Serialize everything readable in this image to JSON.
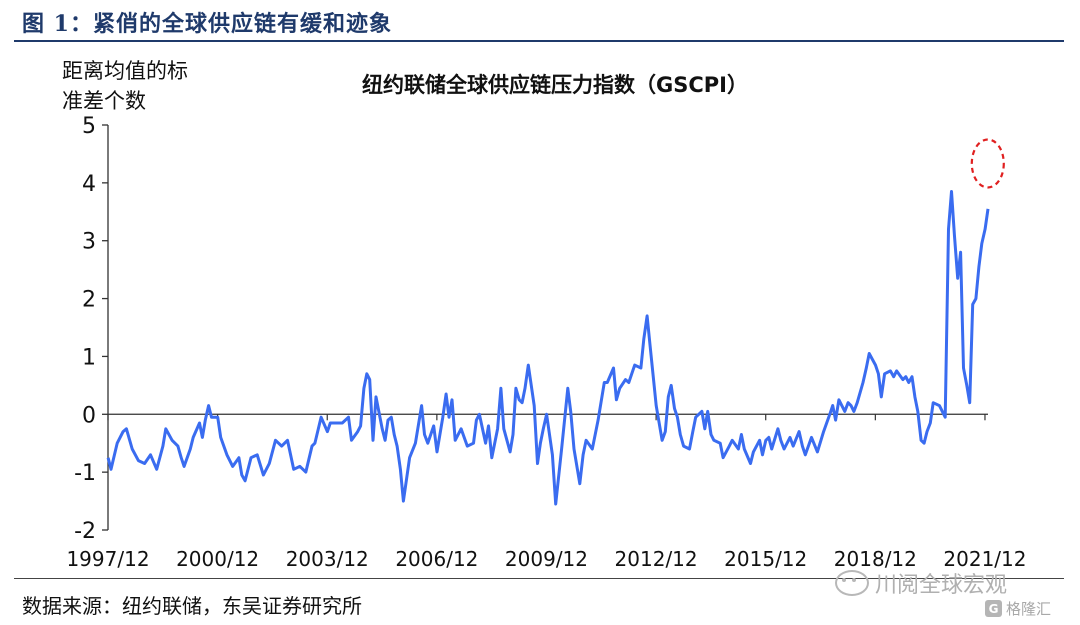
{
  "figure": {
    "title": "图 1：紧俏的全球供应链有缓和迹象",
    "source": "数据来源：纽约联储，东吴证券研究所"
  },
  "watermark": {
    "text": "川阅全球宏观",
    "icon": "wechat-icon",
    "logo_text": "格隆汇",
    "logo_icon": "gelonghui-logo-icon"
  },
  "chart_data": {
    "type": "line",
    "title": "纽约联储全球供应链压力指数（GSCPI）",
    "ylabel_lines": [
      "距离均值的标",
      "准差个数"
    ],
    "ylim": [
      -2,
      5
    ],
    "yticks": [
      5,
      4,
      3,
      2,
      1,
      0,
      -1,
      -2
    ],
    "x_tick_labels": [
      "1997/12",
      "2000/12",
      "2003/12",
      "2006/12",
      "2009/12",
      "2012/12",
      "2015/12",
      "2018/12",
      "2021/12"
    ],
    "x_tick_positions": [
      1997.917,
      2000.917,
      2003.917,
      2006.917,
      2009.917,
      2012.917,
      2015.917,
      2018.917,
      2021.917
    ],
    "xlim": [
      1997.917,
      2022.0
    ],
    "line_color": "#3a6cf0",
    "highlight": {
      "shape": "dashed-ellipse",
      "color": "#e02020",
      "at": [
        2021.83,
        4.3
      ]
    },
    "series": [
      {
        "points": [
          [
            1997.92,
            -0.75
          ],
          [
            1998.0,
            -0.95
          ],
          [
            1998.17,
            -0.5
          ],
          [
            1998.33,
            -0.3
          ],
          [
            1998.42,
            -0.25
          ],
          [
            1998.58,
            -0.6
          ],
          [
            1998.75,
            -0.8
          ],
          [
            1998.92,
            -0.85
          ],
          [
            1999.08,
            -0.7
          ],
          [
            1999.25,
            -0.95
          ],
          [
            1999.42,
            -0.55
          ],
          [
            1999.5,
            -0.25
          ],
          [
            1999.67,
            -0.45
          ],
          [
            1999.83,
            -0.55
          ],
          [
            1999.92,
            -0.75
          ],
          [
            2000.0,
            -0.9
          ],
          [
            2000.17,
            -0.6
          ],
          [
            2000.25,
            -0.4
          ],
          [
            2000.42,
            -0.15
          ],
          [
            2000.5,
            -0.4
          ],
          [
            2000.58,
            -0.1
          ],
          [
            2000.67,
            0.15
          ],
          [
            2000.75,
            -0.05
          ],
          [
            2000.92,
            -0.05
          ],
          [
            2001.0,
            -0.4
          ],
          [
            2001.17,
            -0.7
          ],
          [
            2001.33,
            -0.9
          ],
          [
            2001.5,
            -0.75
          ],
          [
            2001.58,
            -1.05
          ],
          [
            2001.67,
            -1.15
          ],
          [
            2001.83,
            -0.75
          ],
          [
            2002.0,
            -0.7
          ],
          [
            2002.17,
            -1.05
          ],
          [
            2002.33,
            -0.85
          ],
          [
            2002.5,
            -0.45
          ],
          [
            2002.67,
            -0.55
          ],
          [
            2002.83,
            -0.45
          ],
          [
            2003.0,
            -0.95
          ],
          [
            2003.17,
            -0.9
          ],
          [
            2003.33,
            -1.0
          ],
          [
            2003.5,
            -0.55
          ],
          [
            2003.58,
            -0.5
          ],
          [
            2003.75,
            -0.05
          ],
          [
            2003.92,
            -0.3
          ],
          [
            2004.0,
            -0.15
          ],
          [
            2004.17,
            -0.15
          ],
          [
            2004.33,
            -0.15
          ],
          [
            2004.5,
            -0.05
          ],
          [
            2004.58,
            -0.45
          ],
          [
            2004.75,
            -0.3
          ],
          [
            2004.83,
            -0.2
          ],
          [
            2004.92,
            0.45
          ],
          [
            2005.0,
            0.7
          ],
          [
            2005.08,
            0.6
          ],
          [
            2005.17,
            -0.45
          ],
          [
            2005.25,
            0.3
          ],
          [
            2005.42,
            -0.25
          ],
          [
            2005.5,
            -0.45
          ],
          [
            2005.58,
            -0.1
          ],
          [
            2005.67,
            -0.05
          ],
          [
            2005.75,
            -0.35
          ],
          [
            2005.83,
            -0.55
          ],
          [
            2005.92,
            -0.95
          ],
          [
            2006.0,
            -1.5
          ],
          [
            2006.17,
            -0.75
          ],
          [
            2006.33,
            -0.5
          ],
          [
            2006.5,
            0.15
          ],
          [
            2006.58,
            -0.35
          ],
          [
            2006.67,
            -0.5
          ],
          [
            2006.83,
            -0.2
          ],
          [
            2006.92,
            -0.65
          ],
          [
            2007.08,
            -0.05
          ],
          [
            2007.17,
            0.35
          ],
          [
            2007.25,
            -0.05
          ],
          [
            2007.33,
            0.25
          ],
          [
            2007.42,
            -0.45
          ],
          [
            2007.58,
            -0.25
          ],
          [
            2007.75,
            -0.55
          ],
          [
            2007.92,
            -0.5
          ],
          [
            2008.0,
            -0.1
          ],
          [
            2008.08,
            0.0
          ],
          [
            2008.25,
            -0.5
          ],
          [
            2008.33,
            -0.2
          ],
          [
            2008.42,
            -0.75
          ],
          [
            2008.58,
            -0.25
          ],
          [
            2008.67,
            0.45
          ],
          [
            2008.75,
            -0.25
          ],
          [
            2008.92,
            -0.65
          ],
          [
            2009.0,
            -0.35
          ],
          [
            2009.08,
            0.45
          ],
          [
            2009.17,
            0.25
          ],
          [
            2009.25,
            0.2
          ],
          [
            2009.33,
            0.45
          ],
          [
            2009.42,
            0.85
          ],
          [
            2009.58,
            0.15
          ],
          [
            2009.67,
            -0.85
          ],
          [
            2009.75,
            -0.5
          ],
          [
            2009.83,
            -0.25
          ],
          [
            2009.92,
            0.0
          ],
          [
            2010.08,
            -0.7
          ],
          [
            2010.17,
            -1.55
          ],
          [
            2010.33,
            -0.6
          ],
          [
            2010.5,
            0.45
          ],
          [
            2010.58,
            0.05
          ],
          [
            2010.67,
            -0.6
          ],
          [
            2010.83,
            -1.2
          ],
          [
            2010.92,
            -0.7
          ],
          [
            2011.0,
            -0.45
          ],
          [
            2011.17,
            -0.6
          ],
          [
            2011.33,
            -0.1
          ],
          [
            2011.5,
            0.55
          ],
          [
            2011.58,
            0.55
          ],
          [
            2011.75,
            0.8
          ],
          [
            2011.83,
            0.25
          ],
          [
            2011.92,
            0.45
          ],
          [
            2012.08,
            0.6
          ],
          [
            2012.17,
            0.55
          ],
          [
            2012.33,
            0.85
          ],
          [
            2012.5,
            0.8
          ],
          [
            2012.58,
            1.3
          ],
          [
            2012.67,
            1.7
          ],
          [
            2012.75,
            1.2
          ],
          [
            2012.92,
            0.15
          ],
          [
            2013.08,
            -0.45
          ],
          [
            2013.17,
            -0.3
          ],
          [
            2013.25,
            0.3
          ],
          [
            2013.33,
            0.5
          ],
          [
            2013.42,
            0.1
          ],
          [
            2013.5,
            -0.05
          ],
          [
            2013.58,
            -0.35
          ],
          [
            2013.67,
            -0.55
          ],
          [
            2013.83,
            -0.6
          ],
          [
            2013.92,
            -0.3
          ],
          [
            2014.0,
            -0.05
          ],
          [
            2014.17,
            0.05
          ],
          [
            2014.25,
            -0.25
          ],
          [
            2014.33,
            0.05
          ],
          [
            2014.42,
            -0.35
          ],
          [
            2014.5,
            -0.45
          ],
          [
            2014.67,
            -0.5
          ],
          [
            2014.75,
            -0.75
          ],
          [
            2014.92,
            -0.55
          ],
          [
            2015.0,
            -0.45
          ],
          [
            2015.17,
            -0.6
          ],
          [
            2015.25,
            -0.35
          ],
          [
            2015.33,
            -0.6
          ],
          [
            2015.5,
            -0.85
          ],
          [
            2015.58,
            -0.65
          ],
          [
            2015.75,
            -0.45
          ],
          [
            2015.83,
            -0.7
          ],
          [
            2015.92,
            -0.45
          ],
          [
            2016.0,
            -0.4
          ],
          [
            2016.08,
            -0.6
          ],
          [
            2016.25,
            -0.25
          ],
          [
            2016.33,
            -0.45
          ],
          [
            2016.42,
            -0.6
          ],
          [
            2016.58,
            -0.4
          ],
          [
            2016.67,
            -0.55
          ],
          [
            2016.83,
            -0.3
          ],
          [
            2016.92,
            -0.55
          ],
          [
            2017.0,
            -0.7
          ],
          [
            2017.17,
            -0.4
          ],
          [
            2017.33,
            -0.65
          ],
          [
            2017.5,
            -0.3
          ],
          [
            2017.67,
            0.0
          ],
          [
            2017.75,
            0.15
          ],
          [
            2017.83,
            -0.1
          ],
          [
            2017.92,
            0.25
          ],
          [
            2018.08,
            0.05
          ],
          [
            2018.17,
            0.2
          ],
          [
            2018.25,
            0.15
          ],
          [
            2018.33,
            0.05
          ],
          [
            2018.42,
            0.2
          ],
          [
            2018.58,
            0.55
          ],
          [
            2018.67,
            0.8
          ],
          [
            2018.75,
            1.05
          ],
          [
            2018.92,
            0.85
          ],
          [
            2019.0,
            0.7
          ],
          [
            2019.08,
            0.3
          ],
          [
            2019.17,
            0.7
          ],
          [
            2019.33,
            0.75
          ],
          [
            2019.42,
            0.65
          ],
          [
            2019.5,
            0.75
          ],
          [
            2019.67,
            0.6
          ],
          [
            2019.75,
            0.65
          ],
          [
            2019.83,
            0.55
          ],
          [
            2019.92,
            0.65
          ],
          [
            2020.0,
            0.3
          ],
          [
            2020.08,
            0.05
          ],
          [
            2020.17,
            -0.45
          ],
          [
            2020.25,
            -0.5
          ],
          [
            2020.33,
            -0.3
          ],
          [
            2020.42,
            -0.15
          ],
          [
            2020.5,
            0.2
          ],
          [
            2020.67,
            0.15
          ],
          [
            2020.83,
            -0.05
          ],
          [
            2020.92,
            3.2
          ],
          [
            2021.0,
            3.85
          ],
          [
            2021.08,
            3.1
          ],
          [
            2021.17,
            2.35
          ],
          [
            2021.25,
            2.8
          ],
          [
            2021.33,
            0.8
          ],
          [
            2021.42,
            0.5
          ],
          [
            2021.5,
            0.2
          ],
          [
            2021.58,
            1.9
          ],
          [
            2021.67,
            2.0
          ],
          [
            2021.75,
            2.55
          ],
          [
            2021.83,
            2.95
          ],
          [
            2021.92,
            3.2
          ],
          [
            2022.0,
            3.55
          ]
        ]
      }
    ]
  }
}
